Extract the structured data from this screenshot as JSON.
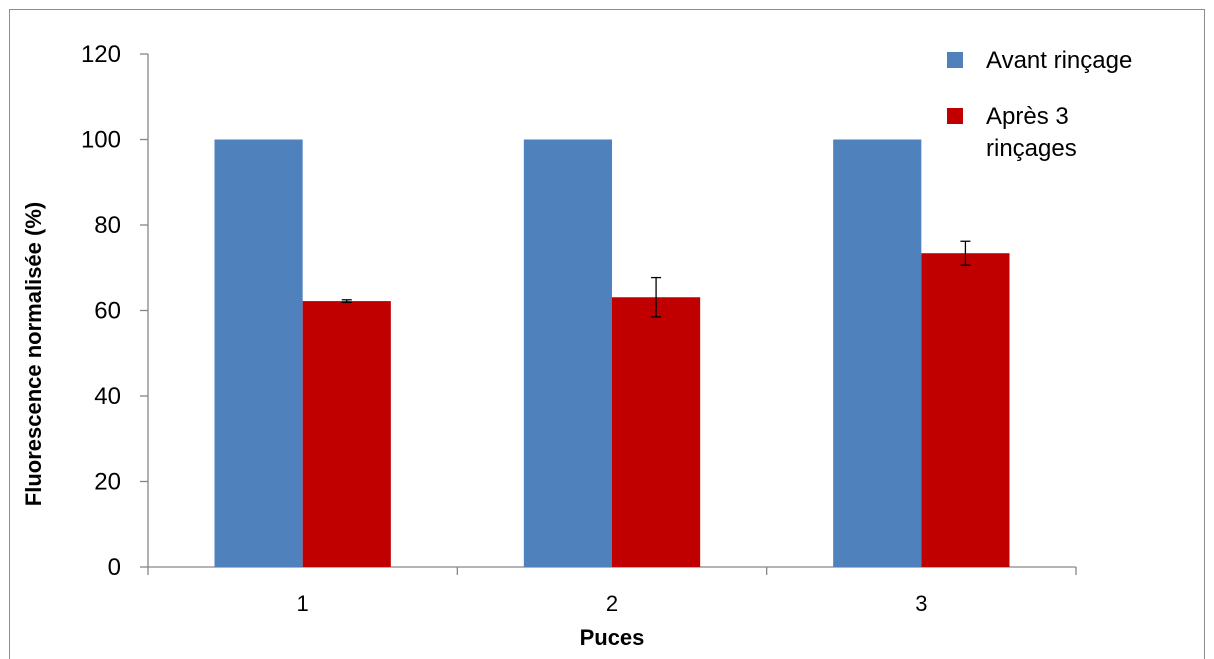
{
  "chart_data": {
    "type": "bar",
    "categories": [
      "1",
      "2",
      "3"
    ],
    "series": [
      {
        "name": "Avant rinçage",
        "color": "#4f81bd",
        "values": [
          100,
          100,
          100
        ],
        "errors": [
          0,
          0,
          0
        ]
      },
      {
        "name": "Après 3 rinçages",
        "color": "#c00000",
        "values": [
          62.2,
          63.1,
          73.4
        ],
        "errors": [
          0.3,
          4.6,
          2.8
        ]
      }
    ],
    "xlabel": "Puces",
    "ylabel": "Fluorescence normalisée (%)",
    "ylim": [
      0,
      120
    ],
    "yticks": [
      0,
      20,
      40,
      60,
      80,
      100,
      120
    ],
    "grid": false,
    "legend": {
      "position": "top-right",
      "entries": [
        {
          "lines": [
            "Avant rinçage"
          ]
        },
        {
          "lines": [
            "Après 3",
            "rinçages"
          ]
        }
      ]
    }
  }
}
